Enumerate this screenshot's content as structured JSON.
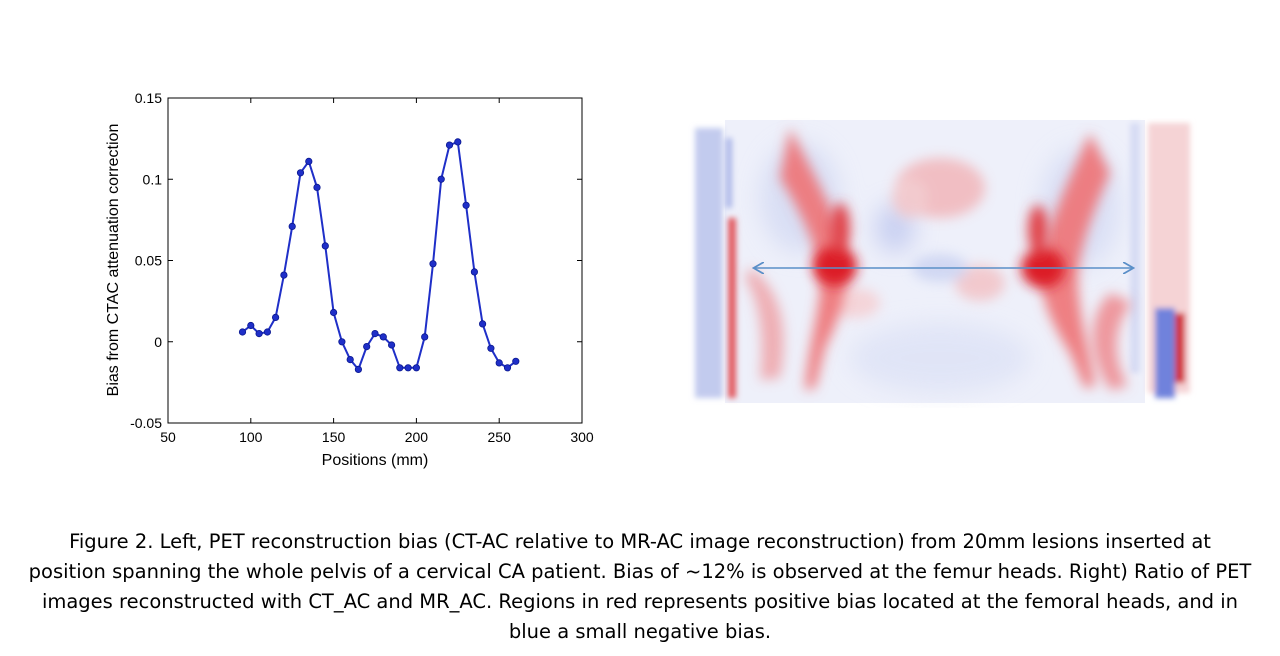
{
  "chart_data": {
    "type": "line",
    "xlabel": "Positions (mm)",
    "ylabel": "Bias from CTAC attenuation correction",
    "xlim": [
      50,
      300
    ],
    "ylim": [
      -0.05,
      0.15
    ],
    "xticks": [
      "50",
      "100",
      "150",
      "200",
      "250",
      "300"
    ],
    "yticks": [
      "-0.05",
      "0",
      "0.05",
      "0.1",
      "0.15"
    ],
    "grid": false,
    "color": "#1f2fc8",
    "x": [
      95,
      100,
      105,
      110,
      115,
      120,
      125,
      130,
      135,
      140,
      145,
      150,
      155,
      160,
      165,
      170,
      175,
      180,
      185,
      190,
      195,
      200,
      205,
      210,
      215,
      220,
      225,
      230,
      235,
      240,
      245,
      250,
      255,
      260
    ],
    "y": [
      0.006,
      0.01,
      0.005,
      0.006,
      0.015,
      0.041,
      0.071,
      0.104,
      0.111,
      0.095,
      0.059,
      0.018,
      0.0,
      -0.011,
      -0.017,
      -0.003,
      0.005,
      0.003,
      -0.002,
      -0.016,
      -0.016,
      -0.016,
      0.003,
      0.048,
      0.1,
      0.121,
      0.123,
      0.084,
      0.043,
      0.011,
      -0.004,
      -0.013,
      -0.016,
      -0.012
    ]
  },
  "heatmap": {
    "type": "image",
    "colors": {
      "positive": "#e0303a",
      "negative": "#7b8ee0",
      "neutral": "#ffffff",
      "arrow": "#5a8fc8"
    }
  },
  "caption": {
    "lines": [
      "Figure 2. Left, PET reconstruction bias (CT-AC relative to MR-AC image reconstruction) from 20mm lesions inserted at",
      "position spanning the whole pelvis of a cervical CA patient. Bias of ~12% is observed at the femur heads. Right) Ratio of PET",
      "images reconstructed with CT_AC and MR_AC.  Regions in red represents positive bias located at the femoral heads, and in",
      "blue a small negative bias."
    ]
  }
}
